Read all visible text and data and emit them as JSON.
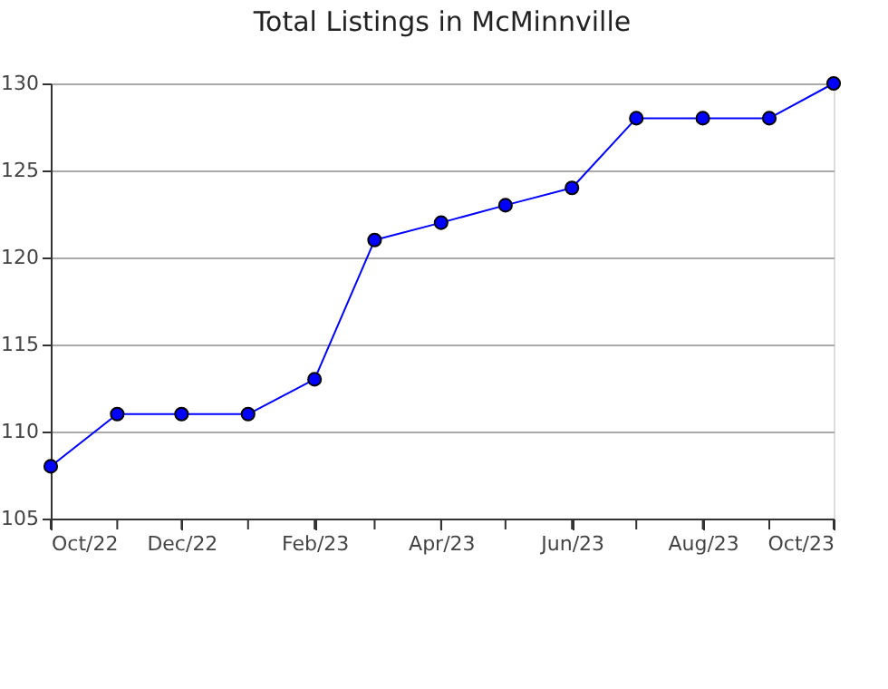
{
  "chart_data": {
    "type": "line",
    "title": "Total Listings in McMinnville",
    "x": [
      "2022-10",
      "2022-11",
      "2022-12",
      "2023-01",
      "2023-02",
      "2023-03",
      "2023-04",
      "2023-05",
      "2023-06",
      "2023-07",
      "2023-08",
      "2023-09",
      "2023-10"
    ],
    "series": [
      {
        "color": "#0000ff",
        "values": [
          108,
          111,
          111,
          111,
          113,
          121,
          122,
          123,
          124,
          128,
          128,
          128,
          130
        ]
      }
    ],
    "xlim": [
      "2022-10",
      "2023-10"
    ],
    "xticks": [
      {
        "value": "2022-10",
        "label": "Oct/22"
      },
      {
        "value": "2022-11",
        "label": null
      },
      {
        "value": "2022-12",
        "label": "Dec/22"
      },
      {
        "value": "2023-01",
        "label": null
      },
      {
        "value": "2023-02",
        "label": "Feb/23"
      },
      {
        "value": "2023-03",
        "label": null
      },
      {
        "value": "2023-04",
        "label": "Apr/23"
      },
      {
        "value": "2023-05",
        "label": null
      },
      {
        "value": "2023-06",
        "label": "Jun/23"
      },
      {
        "value": "2023-07",
        "label": null
      },
      {
        "value": "2023-08",
        "label": "Aug/23"
      },
      {
        "value": "2023-09",
        "label": null
      },
      {
        "value": "2023-10",
        "label": "Oct/23"
      }
    ],
    "ylim": [
      105,
      130
    ],
    "yticks": [
      105,
      110,
      115,
      120,
      125,
      130
    ],
    "grid": "y",
    "marker": "circle",
    "line_style": "solid",
    "legend": false
  }
}
